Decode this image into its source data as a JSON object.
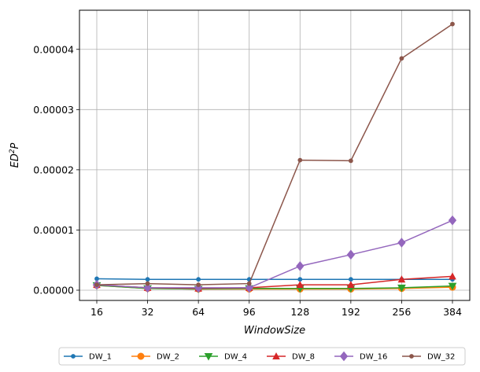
{
  "chart_data": {
    "type": "line",
    "xlabel": "WindowSize",
    "ylabel_base": "ED",
    "ylabel_sup": "2",
    "ylabel_tail": "P",
    "categories": [
      "16",
      "32",
      "64",
      "96",
      "128",
      "192",
      "256",
      "384"
    ],
    "ylim": [
      -1.7e-06,
      4.65e-05
    ],
    "yticks": [
      "0.00000",
      "0.00001",
      "0.00002",
      "0.00003",
      "0.00004"
    ],
    "ytick_values": [
      0,
      1e-05,
      2e-05,
      3e-05,
      4e-05
    ],
    "grid": true,
    "legend_position": "bottom",
    "series": [
      {
        "name": "DW_1",
        "color": "#1f77b4",
        "marker": "point",
        "values": [
          1.9e-06,
          1.8e-06,
          1.8e-06,
          1.8e-06,
          1.8e-06,
          1.8e-06,
          1.8e-06,
          1.8e-06
        ]
      },
      {
        "name": "DW_2",
        "color": "#ff7f0e",
        "marker": "circle",
        "values": [
          8e-07,
          3e-07,
          2e-07,
          2e-07,
          2e-07,
          2e-07,
          3e-07,
          5e-07
        ]
      },
      {
        "name": "DW_4",
        "color": "#2ca02c",
        "marker": "triangle-down",
        "values": [
          8e-07,
          3e-07,
          2e-07,
          3e-07,
          3e-07,
          3e-07,
          4e-07,
          7e-07
        ]
      },
      {
        "name": "DW_8",
        "color": "#d62728",
        "marker": "triangle-up",
        "values": [
          9e-07,
          4e-07,
          3e-07,
          4e-07,
          9e-07,
          9e-07,
          1.8e-06,
          2.3e-06
        ]
      },
      {
        "name": "DW_16",
        "color": "#9467bd",
        "marker": "diamond",
        "values": [
          9e-07,
          4e-07,
          4e-07,
          4e-07,
          4e-06,
          5.9e-06,
          7.9e-06,
          1.16e-05
        ]
      },
      {
        "name": "DW_32",
        "color": "#8c564b",
        "marker": "point",
        "values": [
          9e-07,
          1.1e-06,
          9e-07,
          1.1e-06,
          2.16e-05,
          2.15e-05,
          3.85e-05,
          4.42e-05
        ]
      }
    ]
  }
}
